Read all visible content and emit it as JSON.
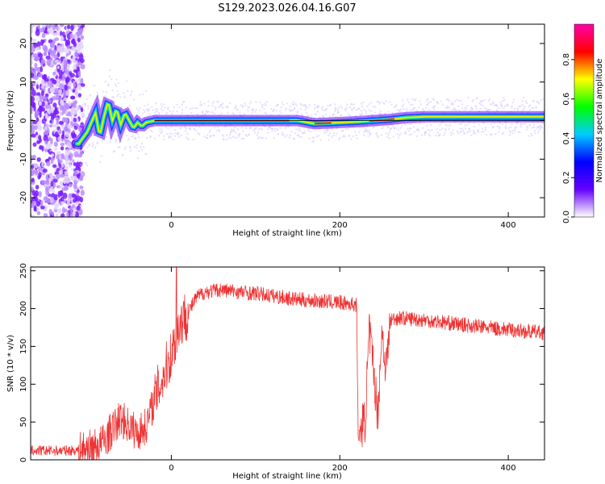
{
  "title": "S129.2023.026.04.16.G07",
  "chart_data": [
    {
      "type": "heatmap",
      "ylabel": "Frequency (Hz)",
      "xlabel": "Height of straight line (km)",
      "xlim": [
        -167,
        443
      ],
      "ylim": [
        -25,
        25
      ],
      "xticks": [
        0,
        200,
        400
      ],
      "yticks": [
        -20,
        -10,
        0,
        10,
        20
      ],
      "colorbar": {
        "label": "Normalized spectral amplitude",
        "range": [
          0,
          0.98
        ],
        "ticks": [
          0.0,
          0.2,
          0.4,
          0.6,
          0.8
        ],
        "colors": [
          "#ffffff",
          "#6600ff",
          "#0000ff",
          "#00ccff",
          "#00ff00",
          "#ffff00",
          "#ff0000",
          "#ff00aa"
        ]
      },
      "ridge": {
        "x": [
          -110,
          -100,
          -90,
          -85,
          -80,
          -75,
          -70,
          -65,
          -60,
          -55,
          -50,
          -45,
          -40,
          -35,
          -30,
          -20,
          0,
          100,
          150,
          170,
          200,
          220,
          240,
          260,
          280,
          300,
          350,
          400,
          443
        ],
        "freq": [
          -6,
          -3,
          2,
          -4,
          1,
          5,
          0,
          3,
          -1,
          2,
          0,
          -2,
          -0.5,
          -1.5,
          -0.5,
          0,
          0,
          0,
          0,
          -0.8,
          -0.5,
          -0.3,
          0,
          0.3,
          0.8,
          1,
          1,
          1,
          1
        ]
      }
    },
    {
      "type": "line",
      "ylabel": "SNR (10 * v/v)",
      "xlabel": "Height of straight line (km)",
      "xlim": [
        -167,
        443
      ],
      "ylim": [
        0,
        255
      ],
      "xticks": [
        0,
        200,
        400
      ],
      "yticks": [
        0,
        50,
        100,
        150,
        200,
        250
      ],
      "color": "#ee3333",
      "series": [
        {
          "x": [
            -167,
            -130,
            -110,
            -100,
            -90,
            -80,
            -70,
            -60,
            -50,
            -40,
            -30,
            -20,
            -10,
            0,
            5,
            10,
            20,
            30,
            40,
            60,
            80,
            100,
            150,
            200,
            220,
            222,
            225,
            230,
            235,
            240,
            245,
            250,
            255,
            260,
            270,
            300,
            350,
            400,
            443
          ],
          "y": [
            12,
            12,
            13,
            15,
            17,
            25,
            40,
            55,
            45,
            35,
            45,
            80,
            110,
            140,
            160,
            180,
            195,
            215,
            222,
            225,
            222,
            220,
            212,
            208,
            205,
            20,
            45,
            50,
            170,
            120,
            60,
            170,
            120,
            185,
            188,
            185,
            178,
            172,
            168
          ]
        }
      ]
    }
  ]
}
